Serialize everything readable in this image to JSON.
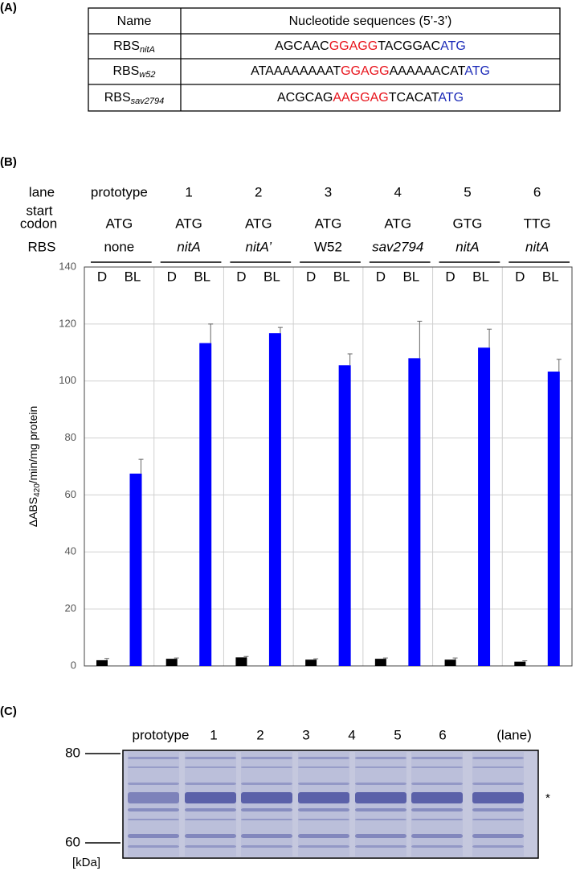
{
  "panel_labels": [
    "(A)",
    "(B)",
    "(C)"
  ],
  "table": {
    "header": [
      "Name",
      "Nucleotide sequences (5’-3’)"
    ],
    "rows": [
      {
        "name": [
          "RBS",
          "nitA"
        ],
        "sequence": [
          {
            "text": "AGCAAC",
            "color": "#000000"
          },
          {
            "text": "GGAGG",
            "color": "#e8141c"
          },
          {
            "text": "TACGGAC",
            "color": "#000000"
          },
          {
            "text": "ATG",
            "color": "#1c2bb8"
          }
        ]
      },
      {
        "name": [
          "RBS",
          "w52"
        ],
        "sequence": [
          {
            "text": "ATAAAAAAAAT",
            "color": "#000000"
          },
          {
            "text": "GGAGG",
            "color": "#e8141c"
          },
          {
            "text": "AAAAAACAT",
            "color": "#000000"
          },
          {
            "text": "ATG",
            "color": "#1c2bb8"
          }
        ]
      },
      {
        "name": [
          "RBS",
          "sav2794"
        ],
        "sequence": [
          {
            "text": "ACGCAG",
            "color": "#000000"
          },
          {
            "text": "AAGGAG",
            "color": "#e8141c"
          },
          {
            "text": "TCACAT",
            "color": "#000000"
          },
          {
            "text": "ATG",
            "color": "#1c2bb8"
          }
        ]
      }
    ]
  },
  "chart_data": {
    "type": "bar",
    "row_labels": [
      "lane",
      "start",
      "codon",
      "RBS"
    ],
    "categories": [
      "prototype",
      "1",
      "2",
      "3",
      "4",
      "5",
      "6"
    ],
    "start_codons": [
      "ATG",
      "ATG",
      "ATG",
      "ATG",
      "ATG",
      "GTG",
      "TTG"
    ],
    "rbs": [
      "none",
      "nitA",
      "nitA’",
      "W52",
      "sav2794",
      "nitA",
      "nitA"
    ],
    "rbs_italic": [
      false,
      true,
      true,
      false,
      true,
      true,
      true
    ],
    "y_label": [
      "ΔABS",
      "420",
      "/min/mg protein"
    ],
    "series": [
      {
        "name": "D",
        "color": "#000000",
        "values": [
          2,
          2.5,
          3,
          2.2,
          2.5,
          2.2,
          1.5
        ],
        "errors": [
          0.6,
          0.3,
          0.3,
          0.3,
          0.3,
          0.6,
          0.3
        ]
      },
      {
        "name": "BL",
        "color": "#0000ff",
        "values": [
          67.5,
          113.3,
          116.8,
          105.5,
          108,
          111.7,
          103.3
        ],
        "errors": [
          5,
          6.7,
          2,
          4,
          13,
          6.5,
          4.3
        ]
      }
    ],
    "ylim": [
      0,
      140
    ],
    "yticks": [
      0,
      20,
      40,
      60,
      80,
      100,
      120,
      140
    ],
    "grid": true
  },
  "gel": {
    "lanes": [
      "prototype",
      "1",
      "2",
      "3",
      "4",
      "5",
      "6"
    ],
    "lane_caption": "(lane)",
    "markers": [
      "80",
      "60"
    ],
    "unit": "[kDa]",
    "band_mark": "*"
  }
}
